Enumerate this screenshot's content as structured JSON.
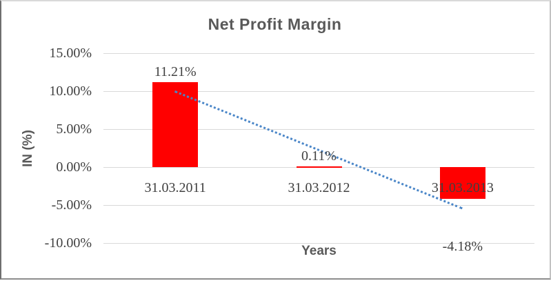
{
  "chart_data": {
    "type": "bar",
    "title": "Net Profit Margin",
    "xlabel": "Years",
    "ylabel": "IN (%)",
    "categories": [
      "31.03.2011",
      "31.03.2012",
      "31.03.2013"
    ],
    "values": [
      11.21,
      0.11,
      -4.18
    ],
    "data_labels": [
      "11.21%",
      "0.11%",
      "-4.18%"
    ],
    "yticks": [
      {
        "value": 15,
        "label": "15.00%"
      },
      {
        "value": 10,
        "label": "10.00%"
      },
      {
        "value": 5,
        "label": "5.00%"
      },
      {
        "value": 0,
        "label": "0.00%"
      },
      {
        "value": -5,
        "label": "-5.00%"
      },
      {
        "value": -10,
        "label": "-10.00%"
      }
    ],
    "ylim": [
      -10,
      15
    ],
    "grid": true,
    "legend": "none",
    "bar_color": "#ff0000",
    "gridline_color": "#d9d9d9",
    "title_color": "#595959",
    "tick_color": "#404040",
    "trendline": {
      "style": "dotted",
      "color": "#4a86c8",
      "start_category_index": 0,
      "start_value": 10.1,
      "end_category_index": 2,
      "end_value": -5.3
    }
  }
}
